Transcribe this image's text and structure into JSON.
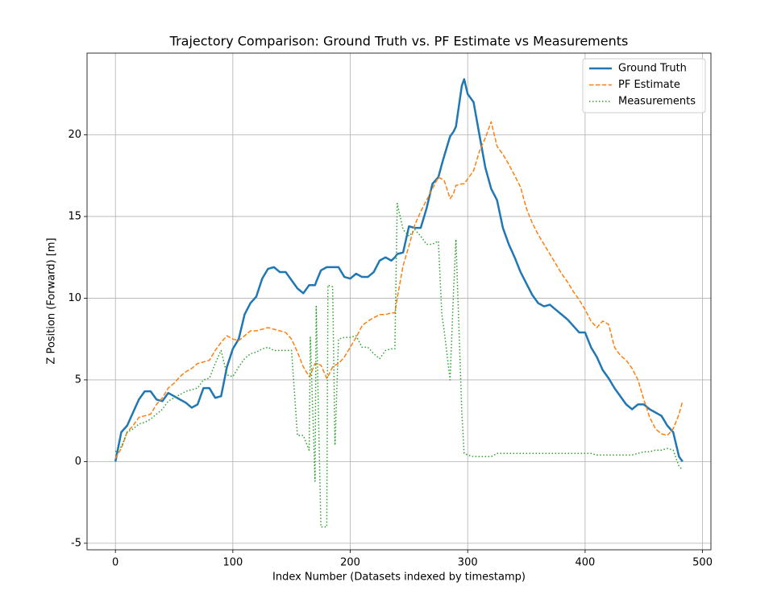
{
  "chart_data": {
    "type": "line",
    "title": "Trajectory Comparison: Ground Truth vs. PF Estimate vs Measurements",
    "x_label": "Index Number (Datasets indexed by timestamp)",
    "y_label": "Z Position (Forward) [m]",
    "x": [
      0,
      5,
      10,
      15,
      20,
      25,
      30,
      35,
      40,
      45,
      50,
      55,
      60,
      65,
      70,
      75,
      80,
      85,
      90,
      95,
      100,
      105,
      110,
      115,
      120,
      125,
      130,
      135,
      140,
      145,
      150,
      155,
      160,
      165,
      166,
      170,
      171,
      175,
      180,
      181,
      185,
      187,
      190,
      195,
      200,
      205,
      210,
      215,
      220,
      225,
      230,
      235,
      238,
      240,
      245,
      250,
      255,
      260,
      265,
      270,
      275,
      278,
      280,
      285,
      288,
      290,
      295,
      297,
      300,
      305,
      310,
      315,
      320,
      325,
      330,
      335,
      340,
      345,
      350,
      355,
      360,
      365,
      370,
      375,
      380,
      385,
      390,
      395,
      400,
      405,
      410,
      415,
      420,
      425,
      430,
      435,
      440,
      445,
      450,
      455,
      460,
      465,
      470,
      475,
      480,
      483
    ],
    "series": [
      {
        "name": "Ground Truth",
        "color": "#1f77b4",
        "style": "solid",
        "width": 2.5,
        "values": [
          0,
          1.8,
          2.2,
          3.0,
          3.8,
          4.3,
          4.3,
          3.8,
          3.7,
          4.2,
          4.0,
          3.8,
          3.6,
          3.3,
          3.5,
          4.5,
          4.5,
          3.9,
          4.0,
          5.8,
          6.9,
          7.5,
          9.0,
          9.7,
          10.1,
          11.2,
          11.8,
          11.9,
          11.6,
          11.6,
          11.1,
          10.6,
          10.3,
          10.8,
          10.8,
          10.8,
          11.0,
          11.7,
          11.9,
          11.9,
          11.9,
          11.9,
          11.9,
          11.3,
          11.2,
          11.5,
          11.3,
          11.3,
          11.6,
          12.3,
          12.5,
          12.3,
          12.5,
          12.7,
          12.8,
          14.4,
          14.3,
          14.3,
          15.5,
          17.0,
          17.4,
          18.2,
          18.7,
          19.9,
          20.2,
          20.5,
          23.0,
          23.4,
          22.5,
          22.0,
          20.0,
          18.0,
          16.7,
          16.0,
          14.3,
          13.3,
          12.5,
          11.6,
          10.9,
          10.2,
          9.7,
          9.5,
          9.6,
          9.3,
          9.0,
          8.7,
          8.3,
          7.9,
          7.9,
          7.0,
          6.4,
          5.6,
          5.1,
          4.5,
          4.0,
          3.5,
          3.2,
          3.5,
          3.5,
          3.2,
          3.0,
          2.8,
          2.2,
          1.8,
          0.3,
          0.0
        ]
      },
      {
        "name": "PF Estimate",
        "color": "#ff7f0e",
        "style": "dashed",
        "width": 1.5,
        "values": [
          0.2,
          0.8,
          1.8,
          2.2,
          2.7,
          2.8,
          2.9,
          3.5,
          3.9,
          4.5,
          4.8,
          5.2,
          5.5,
          5.7,
          6.0,
          6.1,
          6.2,
          6.8,
          7.3,
          7.7,
          7.5,
          7.4,
          7.7,
          8.0,
          8.0,
          8.1,
          8.2,
          8.1,
          8.0,
          7.9,
          7.5,
          6.7,
          5.8,
          5.2,
          5.3,
          6.0,
          6.0,
          5.9,
          5.1,
          5.2,
          5.8,
          5.9,
          6.0,
          6.4,
          7.0,
          7.6,
          8.3,
          8.6,
          8.8,
          9.0,
          9.0,
          9.1,
          9.1,
          10.0,
          12.0,
          13.2,
          14.5,
          15.3,
          16.0,
          16.7,
          17.4,
          17.3,
          17.2,
          16.1,
          16.4,
          16.9,
          17.0,
          17.0,
          17.3,
          17.8,
          19.0,
          19.8,
          20.8,
          19.3,
          18.8,
          18.2,
          17.5,
          16.8,
          15.5,
          14.6,
          13.9,
          13.3,
          12.7,
          12.1,
          11.5,
          11.0,
          10.4,
          9.9,
          9.3,
          8.6,
          8.2,
          8.6,
          8.4,
          7.0,
          6.5,
          6.2,
          5.7,
          5.0,
          3.8,
          2.7,
          2.0,
          1.7,
          1.6,
          2.0,
          2.9,
          3.7
        ]
      },
      {
        "name": "Measurements",
        "color": "#2ca02c",
        "style": "dotted",
        "width": 1.5,
        "values": [
          0.6,
          0.9,
          1.8,
          2.0,
          2.3,
          2.4,
          2.6,
          2.9,
          3.2,
          3.7,
          3.9,
          4.1,
          4.3,
          4.4,
          4.5,
          5.0,
          5.1,
          6.0,
          6.8,
          5.3,
          5.2,
          5.8,
          6.3,
          6.6,
          6.7,
          6.9,
          7.0,
          6.8,
          6.8,
          6.8,
          6.8,
          1.6,
          1.6,
          0.7,
          7.6,
          -1.2,
          9.5,
          -4.0,
          -4.0,
          10.8,
          10.7,
          1.0,
          7.5,
          7.6,
          7.6,
          7.7,
          7.0,
          7.0,
          6.6,
          6.3,
          6.8,
          6.9,
          6.9,
          15.8,
          14.2,
          13.8,
          14.2,
          13.8,
          13.3,
          13.3,
          13.5,
          9.0,
          8.0,
          5.0,
          10.5,
          13.6,
          3.0,
          0.5,
          0.4,
          0.3,
          0.3,
          0.3,
          0.3,
          0.5,
          0.5,
          0.5,
          0.5,
          0.5,
          0.5,
          0.5,
          0.5,
          0.5,
          0.5,
          0.5,
          0.5,
          0.5,
          0.5,
          0.5,
          0.5,
          0.5,
          0.4,
          0.4,
          0.4,
          0.4,
          0.4,
          0.4,
          0.4,
          0.5,
          0.6,
          0.6,
          0.7,
          0.7,
          0.8,
          0.7,
          -0.3,
          -0.5
        ]
      }
    ],
    "xlim": [
      -24.15,
      507.15
    ],
    "xticks": [
      0,
      100,
      200,
      300,
      400,
      500
    ],
    "ylim": [
      -5.4,
      25.0
    ],
    "yticks": [
      -5,
      0,
      5,
      10,
      15,
      20
    ],
    "grid": true,
    "legend": "upper right"
  }
}
